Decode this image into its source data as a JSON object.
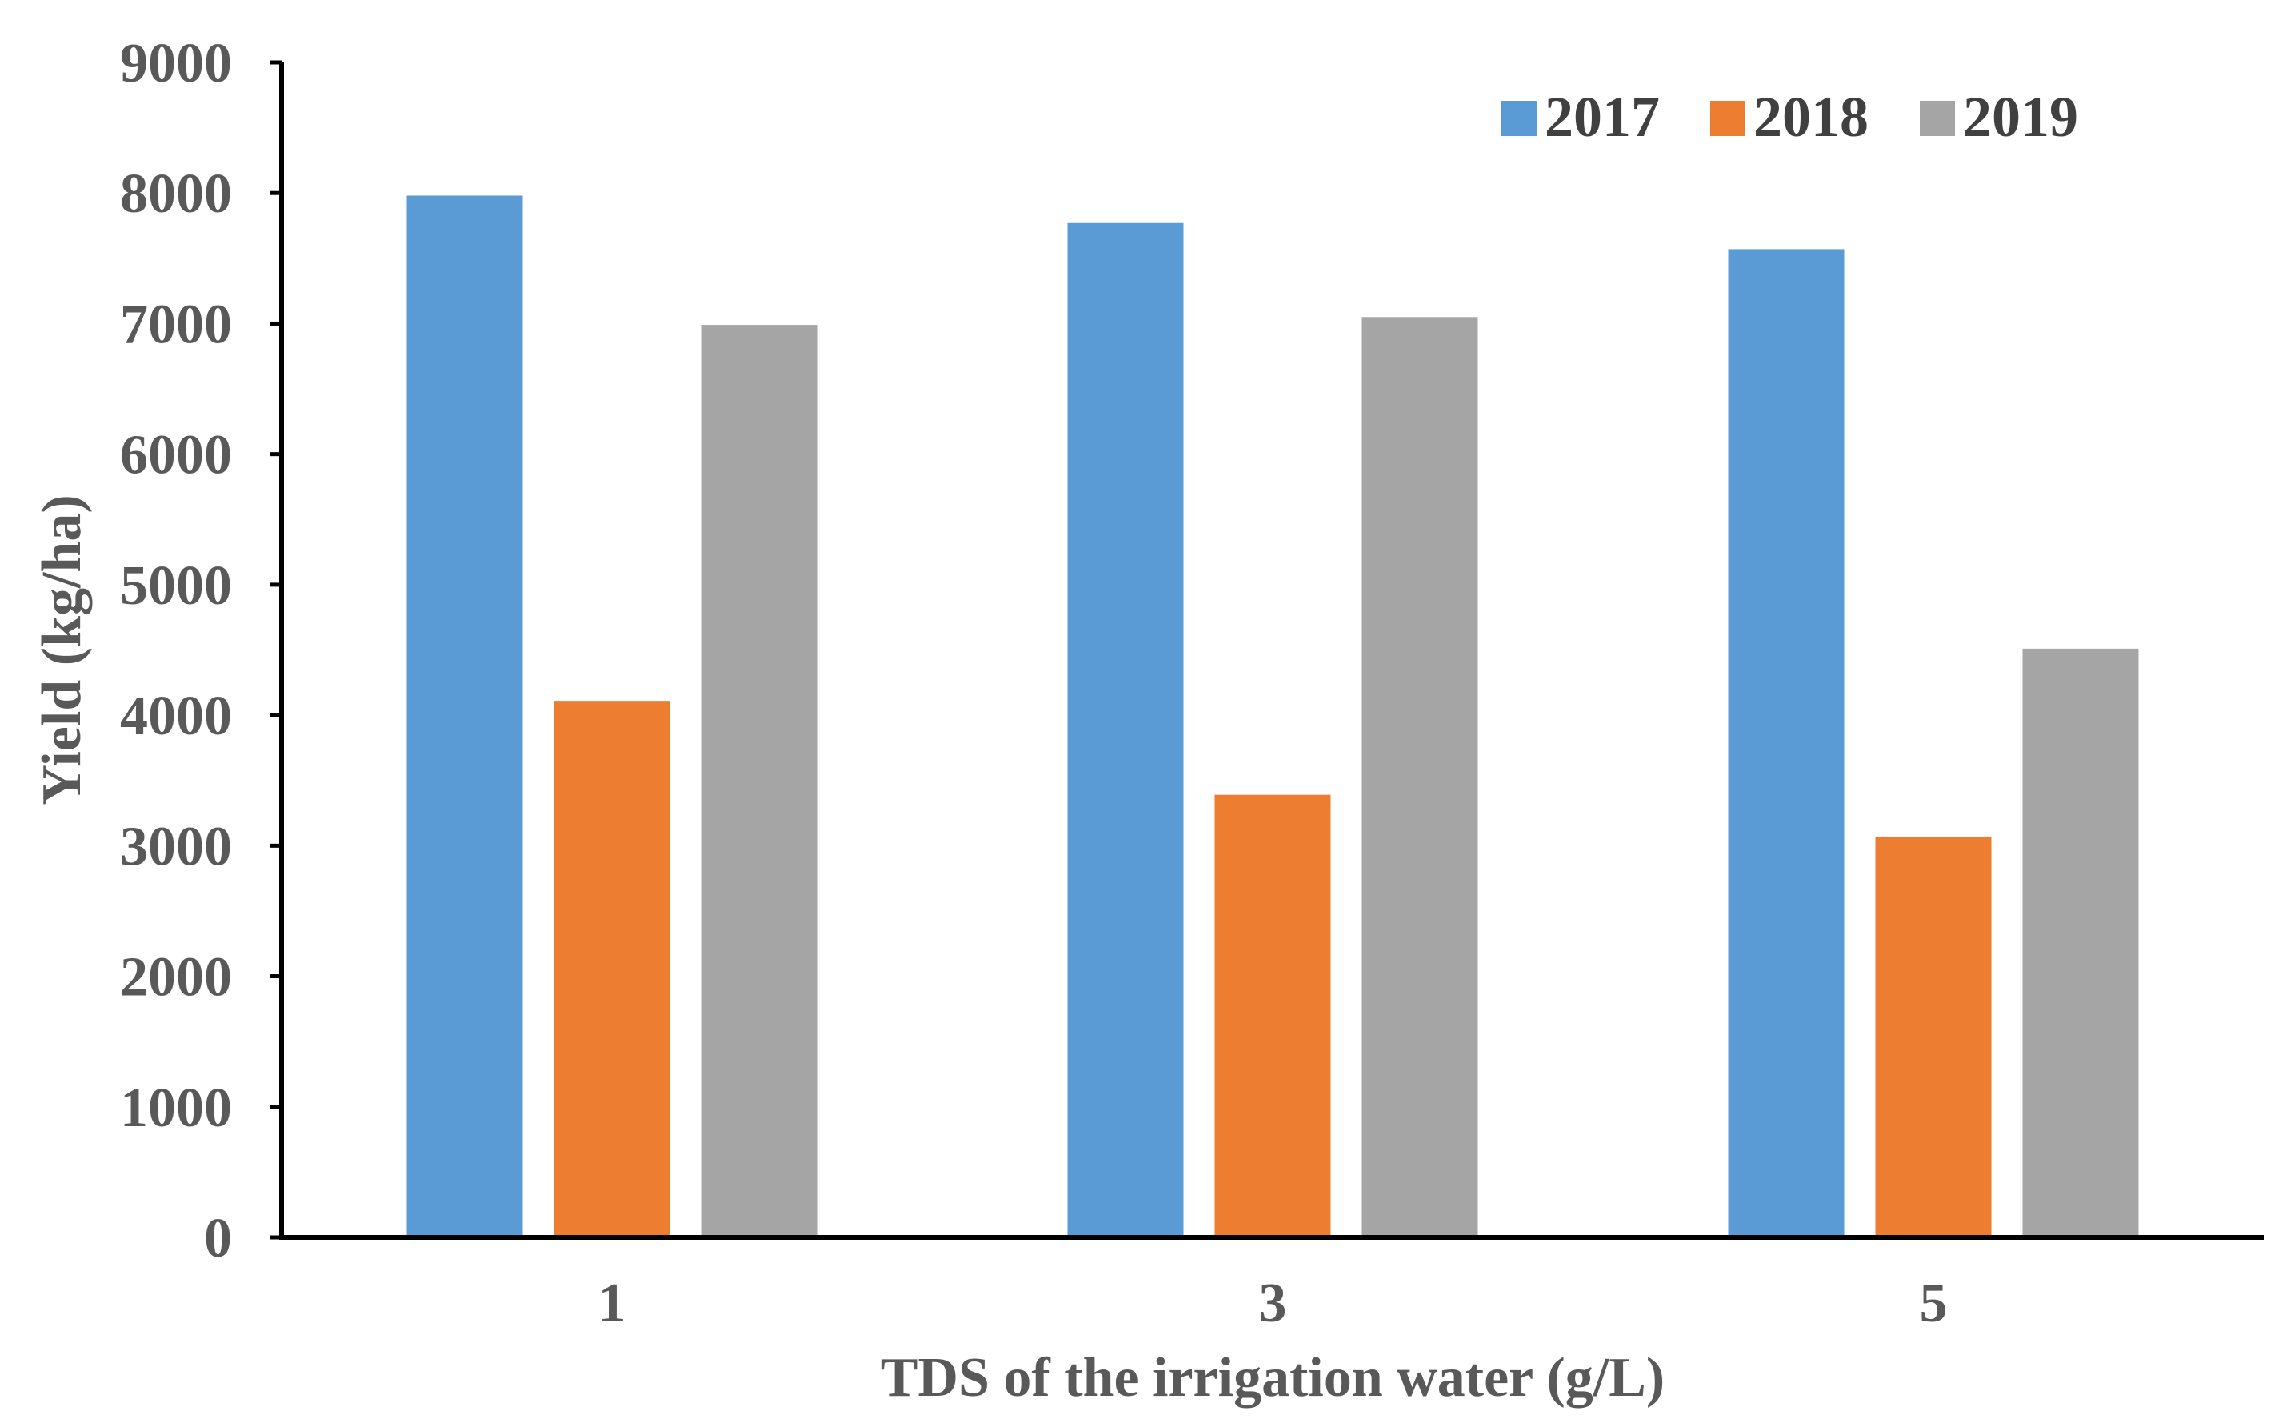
{
  "chart_data": {
    "type": "bar",
    "title": "",
    "xlabel": "TDS of the irrigation water (g/L)",
    "ylabel": "Yield (kg/ha)",
    "categories": [
      "1",
      "3",
      "5"
    ],
    "ylim": [
      0,
      9000
    ],
    "yticks": [
      0,
      1000,
      2000,
      3000,
      4000,
      5000,
      6000,
      7000,
      8000,
      9000
    ],
    "legend_position": "top-right",
    "grid": false,
    "series": [
      {
        "name": "2017",
        "color": "#5B9BD5",
        "values": [
          7980,
          7770,
          7570
        ]
      },
      {
        "name": "2018",
        "color": "#ED7D31",
        "values": [
          4110,
          3390,
          3070
        ]
      },
      {
        "name": "2019",
        "color": "#A5A5A5",
        "values": [
          6990,
          7050,
          4510
        ]
      }
    ]
  }
}
